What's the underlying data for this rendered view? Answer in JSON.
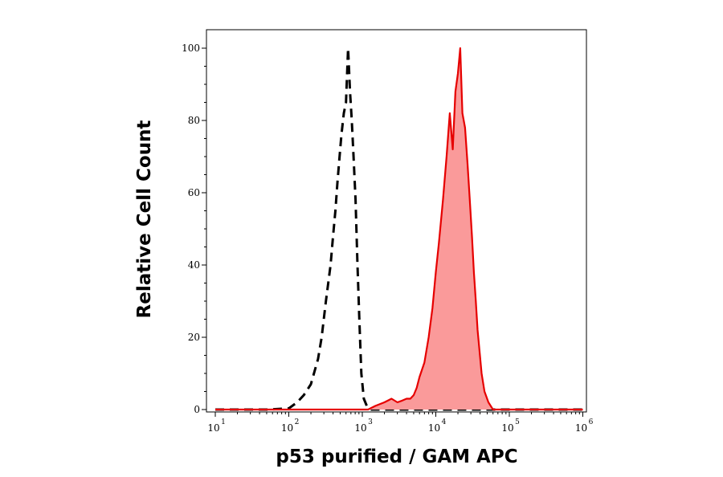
{
  "chart_data": {
    "type": "area",
    "title": "",
    "xlabel": "p53 purified / GAM APC",
    "ylabel": "Relative Cell Count",
    "x_scale": "log",
    "xlim": [
      10,
      1000000
    ],
    "ylim": [
      0,
      100
    ],
    "x_ticks": [
      {
        "base": "10",
        "exp": "1"
      },
      {
        "base": "10",
        "exp": "2"
      },
      {
        "base": "10",
        "exp": "3"
      },
      {
        "base": "10",
        "exp": "4"
      },
      {
        "base": "10",
        "exp": "5"
      },
      {
        "base": "10",
        "exp": "6"
      }
    ],
    "y_ticks": [
      "0",
      "20",
      "40",
      "60",
      "80",
      "100"
    ],
    "grid": false,
    "legend": "none",
    "series": [
      {
        "style": "dashed",
        "color": "#000000",
        "fill": "none",
        "points": [
          [
            10,
            0
          ],
          [
            50,
            0
          ],
          [
            100,
            0.3
          ],
          [
            130,
            2
          ],
          [
            160,
            4
          ],
          [
            200,
            7
          ],
          [
            250,
            14
          ],
          [
            280,
            20
          ],
          [
            320,
            30
          ],
          [
            370,
            40
          ],
          [
            400,
            48
          ],
          [
            430,
            55
          ],
          [
            460,
            63
          ],
          [
            490,
            70
          ],
          [
            520,
            76
          ],
          [
            560,
            82
          ],
          [
            600,
            85
          ],
          [
            640,
            100
          ],
          [
            680,
            88
          ],
          [
            720,
            80
          ],
          [
            760,
            70
          ],
          [
            810,
            58
          ],
          [
            860,
            40
          ],
          [
            910,
            25
          ],
          [
            970,
            10
          ],
          [
            1050,
            3
          ],
          [
            1150,
            1
          ],
          [
            1300,
            0
          ],
          [
            10000,
            0
          ],
          [
            1000000,
            0
          ]
        ]
      },
      {
        "style": "solid",
        "color": "#e60000",
        "fill": "#fa9a9a",
        "points": [
          [
            10,
            0
          ],
          [
            1200,
            0
          ],
          [
            1500,
            1
          ],
          [
            2000,
            2
          ],
          [
            2500,
            3
          ],
          [
            3000,
            2
          ],
          [
            3500,
            2.5
          ],
          [
            4000,
            3
          ],
          [
            4500,
            3
          ],
          [
            5000,
            4
          ],
          [
            5500,
            6
          ],
          [
            6000,
            9
          ],
          [
            7000,
            13
          ],
          [
            8000,
            20
          ],
          [
            9000,
            28
          ],
          [
            10000,
            38
          ],
          [
            11000,
            46
          ],
          [
            12500,
            58
          ],
          [
            14000,
            70
          ],
          [
            15500,
            82
          ],
          [
            17000,
            72
          ],
          [
            18500,
            88
          ],
          [
            20000,
            93
          ],
          [
            21500,
            100
          ],
          [
            23000,
            82
          ],
          [
            25000,
            78
          ],
          [
            27000,
            68
          ],
          [
            29000,
            58
          ],
          [
            31000,
            48
          ],
          [
            33000,
            38
          ],
          [
            35000,
            30
          ],
          [
            37000,
            22
          ],
          [
            39000,
            17
          ],
          [
            42000,
            10
          ],
          [
            46000,
            5
          ],
          [
            52000,
            2
          ],
          [
            60000,
            0
          ],
          [
            1000000,
            0
          ]
        ]
      }
    ]
  }
}
